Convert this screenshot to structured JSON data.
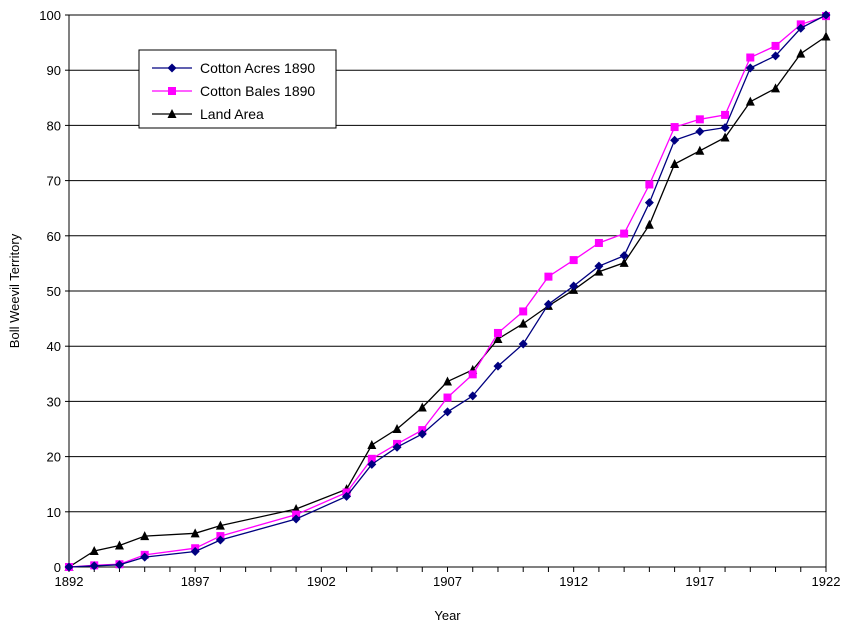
{
  "chart_data": {
    "type": "line",
    "title": "",
    "xlabel": "Year",
    "ylabel": "Boll Weevil Territory",
    "xlim": [
      1892,
      1922
    ],
    "ylim": [
      0,
      100
    ],
    "xticks": [
      1892,
      1897,
      1902,
      1907,
      1912,
      1917,
      1922
    ],
    "yticks": [
      0,
      10,
      20,
      30,
      40,
      50,
      60,
      70,
      80,
      90,
      100
    ],
    "grid": "horizontal",
    "legend_position": "top-left",
    "series": [
      {
        "name": "Cotton Acres 1890",
        "color": "#000080",
        "marker": "diamond",
        "x": [
          1892,
          1893,
          1894,
          1895,
          1897,
          1898,
          1901,
          1903,
          1904,
          1905,
          1906,
          1907,
          1908,
          1909,
          1910,
          1911,
          1912,
          1913,
          1914,
          1915,
          1916,
          1917,
          1918,
          1919,
          1920,
          1921,
          1922
        ],
        "y": [
          0,
          0.2,
          0.4,
          1.8,
          2.8,
          4.9,
          8.7,
          12.8,
          18.6,
          21.7,
          24.1,
          28.1,
          31.0,
          36.4,
          40.4,
          47.6,
          50.9,
          54.5,
          56.4,
          66.0,
          77.3,
          78.9,
          79.6,
          90.4,
          92.6,
          97.6,
          100
        ]
      },
      {
        "name": "Cotton Bales 1890",
        "color": "#FF00FF",
        "marker": "square",
        "x": [
          1892,
          1893,
          1894,
          1895,
          1897,
          1898,
          1901,
          1903,
          1904,
          1905,
          1906,
          1907,
          1908,
          1909,
          1910,
          1911,
          1912,
          1913,
          1914,
          1915,
          1916,
          1917,
          1918,
          1919,
          1920,
          1921,
          1922
        ],
        "y": [
          0,
          0.3,
          0.5,
          2.2,
          3.4,
          5.6,
          9.5,
          13.5,
          19.6,
          22.3,
          24.8,
          30.7,
          34.9,
          42.4,
          46.3,
          52.6,
          55.6,
          58.7,
          60.4,
          69.3,
          79.7,
          81.1,
          81.9,
          92.3,
          94.4,
          98.3,
          99.8
        ]
      },
      {
        "name": "Land Area",
        "color": "#000000",
        "marker": "triangle",
        "x": [
          1892,
          1893,
          1894,
          1895,
          1897,
          1898,
          1901,
          1903,
          1904,
          1905,
          1906,
          1907,
          1908,
          1909,
          1910,
          1911,
          1912,
          1913,
          1914,
          1915,
          1916,
          1917,
          1918,
          1919,
          1920,
          1921,
          1922
        ],
        "y": [
          0,
          2.9,
          3.9,
          5.6,
          6.1,
          7.5,
          10.5,
          14.1,
          22.1,
          25.0,
          28.9,
          33.6,
          35.7,
          41.3,
          44.1,
          47.3,
          50.2,
          53.5,
          55.1,
          62.0,
          73.0,
          75.4,
          77.8,
          84.3,
          86.7,
          93.0,
          96.1
        ]
      }
    ]
  }
}
